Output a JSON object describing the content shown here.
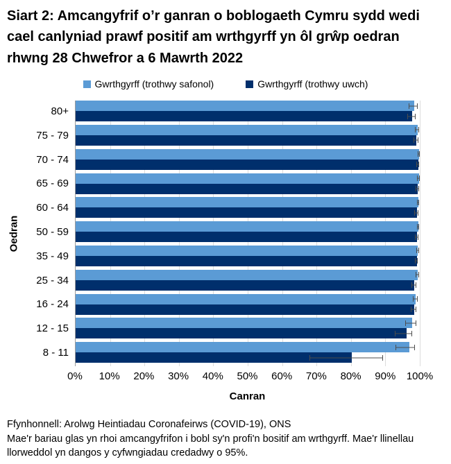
{
  "title": "Siart 2: Amcangyfrif o’r ganran o boblogaeth Cymru sydd wedi cael canlyniad prawf positif am wrthgyrff yn ôl grŵp oedran rhwng 28 Chwefror a 6 Mawrth 2022",
  "chart_data": {
    "type": "bar",
    "orientation": "horizontal",
    "title": "Siart 2: Amcangyfrif o’r ganran o boblogaeth Cymru sydd wedi cael canlyniad prawf positif am wrthgyrff yn ôl grŵp oedran rhwng 28 Chwefror a 6 Mawrth 2022",
    "xlabel": "Canran",
    "ylabel": "Oedran",
    "xlim": [
      0,
      100
    ],
    "x_ticks": [
      "0%",
      "10%",
      "20%",
      "30%",
      "40%",
      "50%",
      "60%",
      "70%",
      "80%",
      "90%",
      "100%"
    ],
    "grid": "vertical",
    "legend_position": "top-center",
    "error_bars": "95% credible intervals",
    "categories": [
      "80+",
      "75 - 79",
      "70 - 74",
      "65 - 69",
      "60 - 64",
      "50 - 59",
      "35 - 49",
      "25 - 34",
      "16 - 24",
      "12 - 15",
      "8 - 11"
    ],
    "series": [
      {
        "name": "Gwrthgyrff (trothwy safonol)",
        "color": "#5B9BD5",
        "values": [
          98.3,
          99.3,
          99.8,
          99.7,
          99.6,
          99.5,
          99.4,
          99.3,
          98.7,
          97.7,
          97.0
        ],
        "ci_low": [
          96.7,
          98.6,
          99.3,
          99.1,
          99.1,
          99.1,
          99.0,
          98.7,
          98.0,
          95.7,
          92.9
        ],
        "ci_high": [
          99.3,
          99.8,
          100.0,
          100.0,
          99.9,
          99.8,
          99.7,
          99.7,
          99.3,
          99.0,
          98.5
        ]
      },
      {
        "name": "Gwrthgyrff (trothwy uwch)",
        "color": "#002F6C",
        "values": [
          97.7,
          99.0,
          99.5,
          99.3,
          99.2,
          99.2,
          99.1,
          98.3,
          98.3,
          96.2,
          80.2
        ],
        "ci_low": [
          96.3,
          98.1,
          99.0,
          98.7,
          98.4,
          98.6,
          98.5,
          97.5,
          97.3,
          92.7,
          68.0
        ],
        "ci_high": [
          98.7,
          99.5,
          99.9,
          99.7,
          99.6,
          99.5,
          99.4,
          98.9,
          99.0,
          97.7,
          89.3
        ]
      }
    ]
  },
  "footer": {
    "source": "Ffynhonnell: Arolwg Heintiadau Coronafeirws (COVID-19), ONS",
    "note": "Mae'r bariau glas yn rhoi amcangyfrifon i bobl sy'n profi'n bositif am wrthgyrff. Mae'r llinellau llorweddol yn dangos y cyfwngiadau credadwy o 95%."
  },
  "colors": {
    "standard_threshold": "#5B9BD5",
    "higher_threshold": "#002F6C",
    "error_bar": "#4d4d4d",
    "gridline": "#dcdcdc",
    "axis_line": "#9a9a9a"
  }
}
